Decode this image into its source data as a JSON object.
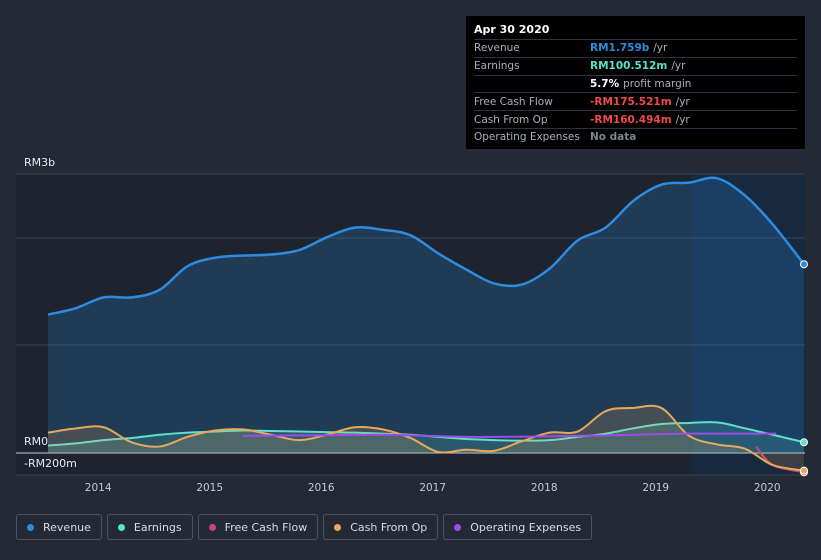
{
  "tooltip": {
    "date": "Apr 30 2020",
    "rows": [
      {
        "label": "Revenue",
        "value": "RM1.759b",
        "unit": "/yr",
        "color": "#2e8ce0"
      },
      {
        "label": "Earnings",
        "value": "RM100.512m",
        "unit": "/yr",
        "color": "#5fe0cd"
      },
      {
        "label": "",
        "value": "5.7%",
        "unit": "profit margin",
        "color": "#ffffff"
      },
      {
        "label": "Free Cash Flow",
        "value": "-RM175.521m",
        "unit": "/yr",
        "color": "#f0494d"
      },
      {
        "label": "Cash From Op",
        "value": "-RM160.494m",
        "unit": "/yr",
        "color": "#f0494d"
      },
      {
        "label": "Operating Expenses",
        "value": "No data",
        "unit": "",
        "color": "#7d848e"
      }
    ]
  },
  "legend": [
    {
      "label": "Revenue",
      "color": "#2e8ce0"
    },
    {
      "label": "Earnings",
      "color": "#5fe0cd"
    },
    {
      "label": "Free Cash Flow",
      "color": "#c8447c"
    },
    {
      "label": "Cash From Op",
      "color": "#e8a85a"
    },
    {
      "label": "Operating Expenses",
      "color": "#9b4ee6"
    }
  ],
  "chart_data": {
    "type": "line",
    "title": "",
    "y_tick_labels": [
      "RM3b",
      "RM0",
      "-RM200m"
    ],
    "ylim": [
      -200,
      2600
    ],
    "units": "RM millions",
    "x_tick_labels": [
      "2014",
      "2015",
      "2016",
      "2017",
      "2018",
      "2019",
      "2020"
    ],
    "xlim": [
      2013.55,
      2020.33
    ],
    "highlight_from": 2019.33,
    "series": [
      {
        "name": "Revenue",
        "color": "#2e8ce0",
        "fill": true,
        "points": [
          [
            2013.55,
            1290
          ],
          [
            2013.8,
            1350
          ],
          [
            2014.05,
            1450
          ],
          [
            2014.3,
            1450
          ],
          [
            2014.55,
            1520
          ],
          [
            2014.8,
            1740
          ],
          [
            2015.05,
            1820
          ],
          [
            2015.3,
            1840
          ],
          [
            2015.55,
            1850
          ],
          [
            2015.8,
            1890
          ],
          [
            2016.05,
            2010
          ],
          [
            2016.3,
            2100
          ],
          [
            2016.55,
            2080
          ],
          [
            2016.8,
            2030
          ],
          [
            2017.05,
            1860
          ],
          [
            2017.3,
            1710
          ],
          [
            2017.55,
            1580
          ],
          [
            2017.8,
            1570
          ],
          [
            2018.05,
            1720
          ],
          [
            2018.3,
            1980
          ],
          [
            2018.55,
            2100
          ],
          [
            2018.8,
            2350
          ],
          [
            2019.05,
            2500
          ],
          [
            2019.3,
            2520
          ],
          [
            2019.55,
            2560
          ],
          [
            2019.8,
            2400
          ],
          [
            2020.05,
            2130
          ],
          [
            2020.33,
            1759
          ]
        ]
      },
      {
        "name": "Earnings",
        "color": "#5fe0cd",
        "fill": true,
        "points": [
          [
            2013.55,
            70
          ],
          [
            2013.8,
            90
          ],
          [
            2014.05,
            120
          ],
          [
            2014.3,
            140
          ],
          [
            2014.55,
            170
          ],
          [
            2014.8,
            190
          ],
          [
            2015.05,
            200
          ],
          [
            2015.3,
            210
          ],
          [
            2015.55,
            205
          ],
          [
            2015.8,
            200
          ],
          [
            2016.05,
            195
          ],
          [
            2016.3,
            190
          ],
          [
            2016.55,
            180
          ],
          [
            2016.8,
            170
          ],
          [
            2017.05,
            150
          ],
          [
            2017.3,
            130
          ],
          [
            2017.55,
            120
          ],
          [
            2017.8,
            115
          ],
          [
            2018.05,
            120
          ],
          [
            2018.3,
            150
          ],
          [
            2018.55,
            180
          ],
          [
            2018.8,
            230
          ],
          [
            2019.05,
            270
          ],
          [
            2019.3,
            280
          ],
          [
            2019.55,
            285
          ],
          [
            2019.8,
            230
          ],
          [
            2020.05,
            170
          ],
          [
            2020.33,
            100
          ]
        ]
      },
      {
        "name": "Free Cash Flow",
        "color": "#c8447c",
        "fill": false,
        "points": [
          [
            2019.9,
            60
          ],
          [
            2020.05,
            -110
          ],
          [
            2020.33,
            -175
          ]
        ]
      },
      {
        "name": "Cash From Op",
        "color": "#e8a85a",
        "fill": true,
        "points": [
          [
            2013.55,
            190
          ],
          [
            2013.8,
            230
          ],
          [
            2014.05,
            240
          ],
          [
            2014.3,
            100
          ],
          [
            2014.55,
            60
          ],
          [
            2014.8,
            150
          ],
          [
            2015.05,
            210
          ],
          [
            2015.3,
            220
          ],
          [
            2015.55,
            170
          ],
          [
            2015.8,
            120
          ],
          [
            2016.05,
            170
          ],
          [
            2016.3,
            240
          ],
          [
            2016.55,
            220
          ],
          [
            2016.8,
            140
          ],
          [
            2017.05,
            10
          ],
          [
            2017.3,
            30
          ],
          [
            2017.55,
            20
          ],
          [
            2017.8,
            110
          ],
          [
            2018.05,
            190
          ],
          [
            2018.3,
            200
          ],
          [
            2018.55,
            390
          ],
          [
            2018.8,
            420
          ],
          [
            2019.05,
            420
          ],
          [
            2019.3,
            160
          ],
          [
            2019.55,
            80
          ],
          [
            2019.8,
            40
          ],
          [
            2020.05,
            -110
          ],
          [
            2020.33,
            -160
          ]
        ]
      },
      {
        "name": "Operating Expenses",
        "color": "#9b4ee6",
        "fill": false,
        "points": [
          [
            2015.3,
            160
          ],
          [
            2016.0,
            165
          ],
          [
            2016.6,
            170
          ],
          [
            2017.3,
            150
          ],
          [
            2018.0,
            155
          ],
          [
            2018.6,
            165
          ],
          [
            2019.3,
            180
          ],
          [
            2020.08,
            180
          ]
        ]
      }
    ]
  }
}
